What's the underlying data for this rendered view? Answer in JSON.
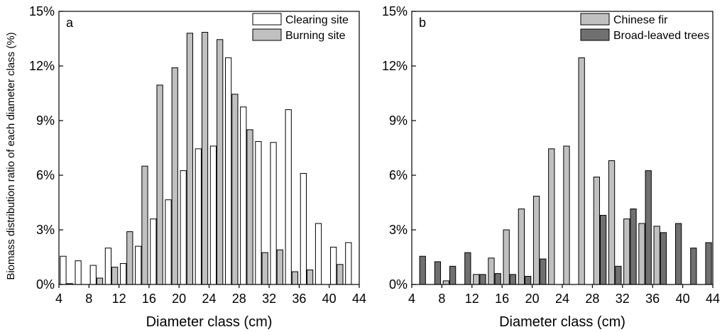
{
  "ylabel": "Biomass distribution ratio of each diameter class (%)",
  "chart_data": [
    {
      "type": "bar",
      "panel": "a",
      "xlabel": "Diameter class (cm)",
      "x_ticks": [
        "4",
        "8",
        "12",
        "16",
        "20",
        "24",
        "28",
        "32",
        "36",
        "40",
        "44"
      ],
      "y_ticks": [
        "0%",
        "3%",
        "6%",
        "9%",
        "12%",
        "15%"
      ],
      "xlim": [
        4,
        44
      ],
      "ylim": [
        0,
        15
      ],
      "x": [
        5,
        7,
        9,
        11,
        13,
        15,
        17,
        19,
        21,
        23,
        25,
        27,
        29,
        31,
        33,
        35,
        37,
        39,
        41,
        43
      ],
      "series": [
        {
          "name": "Clearing site",
          "color": "#ffffff",
          "values": [
            1.55,
            1.3,
            1.05,
            2.0,
            1.15,
            2.1,
            3.6,
            4.65,
            6.25,
            7.45,
            7.6,
            12.45,
            9.75,
            7.85,
            7.8,
            9.6,
            6.1,
            3.35,
            2.05,
            2.3
          ]
        },
        {
          "name": "Burning site",
          "color": "#c0c0c0",
          "values": [
            0.05,
            0.0,
            0.35,
            0.95,
            2.9,
            6.5,
            10.95,
            11.9,
            13.8,
            13.85,
            13.45,
            10.45,
            8.5,
            1.75,
            1.9,
            0.7,
            0.8,
            0.0,
            1.1,
            0.0
          ]
        }
      ]
    },
    {
      "type": "bar",
      "panel": "b",
      "xlabel": "Diameter class (cm)",
      "x_ticks": [
        "4",
        "8",
        "12",
        "16",
        "20",
        "24",
        "28",
        "32",
        "36",
        "40",
        "44"
      ],
      "y_ticks": [
        "0%",
        "3%",
        "6%",
        "9%",
        "12%",
        "15%"
      ],
      "xlim": [
        4,
        44
      ],
      "ylim": [
        0,
        15
      ],
      "x": [
        5,
        7,
        9,
        11,
        13,
        15,
        17,
        19,
        21,
        23,
        25,
        27,
        29,
        31,
        33,
        35,
        37,
        39,
        41,
        43
      ],
      "series": [
        {
          "name": "Chinese fir",
          "color": "#c0c0c0",
          "values": [
            0.0,
            0.0,
            0.2,
            0.0,
            0.55,
            1.45,
            3.0,
            4.15,
            4.85,
            7.45,
            7.6,
            12.45,
            5.9,
            6.8,
            3.6,
            3.35,
            3.2,
            0.0,
            0.0,
            0.0
          ]
        },
        {
          "name": "Broad-leaved trees",
          "color": "#707070",
          "values": [
            1.55,
            1.25,
            1.0,
            1.75,
            0.55,
            0.6,
            0.55,
            0.45,
            1.4,
            0.0,
            0.0,
            0.0,
            3.8,
            1.0,
            4.15,
            6.25,
            2.85,
            3.35,
            2.0,
            2.3
          ]
        }
      ]
    }
  ]
}
